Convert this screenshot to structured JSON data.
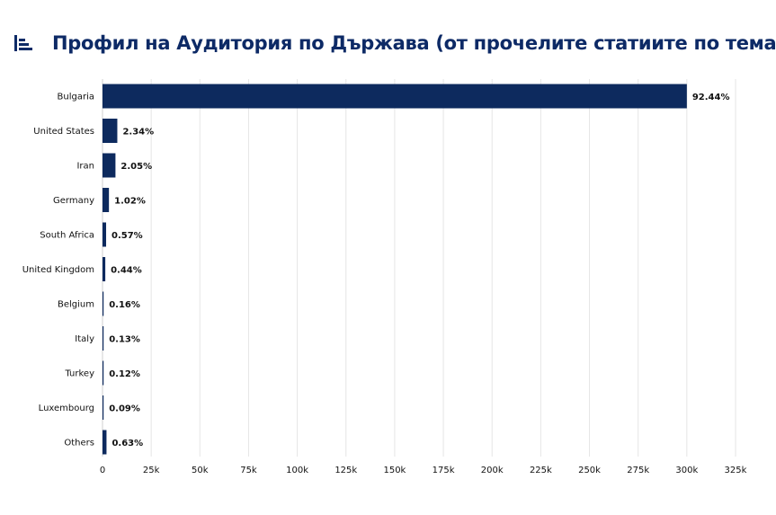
{
  "header": {
    "title": "Профил на Аудитория по Държава (от прочелите статиите по темата)",
    "icon": "bar-chart-icon"
  },
  "colors": {
    "bar": "#0d2a5e",
    "title": "#0d2a66",
    "grid": "#e6e6e6",
    "text": "#111111"
  },
  "chart_data": {
    "type": "bar",
    "orientation": "horizontal",
    "title": "Профил на Аудитория по Държава (от прочелите статиите по темата)",
    "categories": [
      "Bulgaria",
      "United States",
      "Iran",
      "Germany",
      "South Africa",
      "United Kingdom",
      "Belgium",
      "Italy",
      "Turkey",
      "Luxembourg",
      "Others"
    ],
    "values": [
      300000,
      7600,
      6650,
      3300,
      1850,
      1430,
      520,
      420,
      390,
      290,
      2050
    ],
    "data_labels": [
      "92.44%",
      "2.34%",
      "2.05%",
      "1.02%",
      "0.57%",
      "0.44%",
      "0.16%",
      "0.13%",
      "0.12%",
      "0.09%",
      "0.63%"
    ],
    "xlim": [
      0,
      325000
    ],
    "x_ticks": [
      0,
      25000,
      50000,
      75000,
      100000,
      125000,
      150000,
      175000,
      200000,
      225000,
      250000,
      275000,
      300000,
      325000
    ],
    "x_tick_labels": [
      "0",
      "25k",
      "50k",
      "75k",
      "100k",
      "125k",
      "150k",
      "175k",
      "200k",
      "225k",
      "250k",
      "275k",
      "300k",
      "325k"
    ],
    "grid": true,
    "legend": false
  }
}
